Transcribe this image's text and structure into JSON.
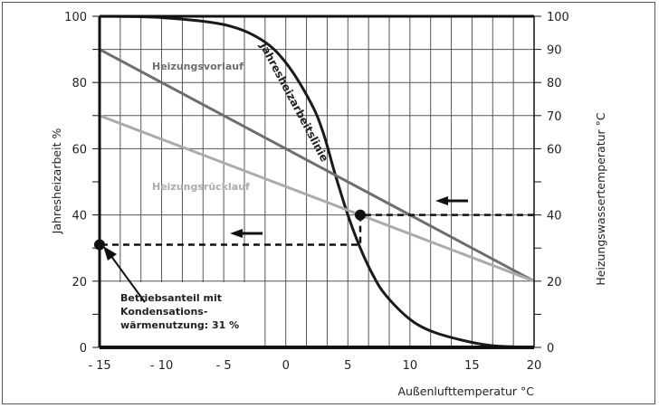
{
  "chart_data": {
    "type": "line",
    "xlabel": "Außenlufttemperatur °C",
    "ylabel_left": "Jahresheizarbeit %",
    "ylabel_right": "Heizungswassertemperatur °C",
    "xlim": [
      -15,
      20
    ],
    "ylim": [
      0,
      100
    ],
    "x_ticks": [
      -15,
      -10,
      -5,
      0,
      5,
      10,
      15,
      20
    ],
    "x_tick_labels": [
      "- 15",
      "- 10",
      "- 5",
      "0",
      "5",
      "10",
      "15",
      "20"
    ],
    "y_left_ticks": [
      "0",
      "20",
      "40",
      "60",
      "80",
      "100"
    ],
    "y_right_ticks": [
      "0",
      "20",
      "40",
      "60",
      "70",
      "80",
      "90",
      "100"
    ],
    "grid": true,
    "series": [
      {
        "name": "Jahresheizarbeitslinie",
        "color": "#1a1a1a",
        "x": [
          -15,
          -10,
          -5,
          -2,
          0,
          2,
          3,
          4,
          5,
          6,
          7,
          8,
          10,
          12,
          15,
          17,
          20
        ],
        "y": [
          100,
          99.6,
          97.5,
          93,
          86,
          74,
          65,
          52,
          40,
          30,
          22,
          16,
          8.5,
          4.5,
          1.5,
          0.4,
          0
        ]
      },
      {
        "name": "Heizungsvorlauf",
        "color": "#6e6e6e",
        "x": [
          -15,
          20
        ],
        "y": [
          90,
          20
        ]
      },
      {
        "name": "Heizungsrücklauf",
        "color": "#ababab",
        "x": [
          -15,
          20
        ],
        "y": [
          70,
          20
        ]
      }
    ],
    "markers": [
      {
        "x": 6,
        "y": 40
      },
      {
        "x": -15,
        "y": 31
      }
    ],
    "dashed_path": {
      "x": [
        20,
        6,
        6,
        -15
      ],
      "y": [
        40,
        40,
        31,
        31
      ]
    },
    "annotation": [
      "Betriebsanteil mit",
      "Kondensations-",
      "wärmenutzung: 31 %"
    ]
  }
}
